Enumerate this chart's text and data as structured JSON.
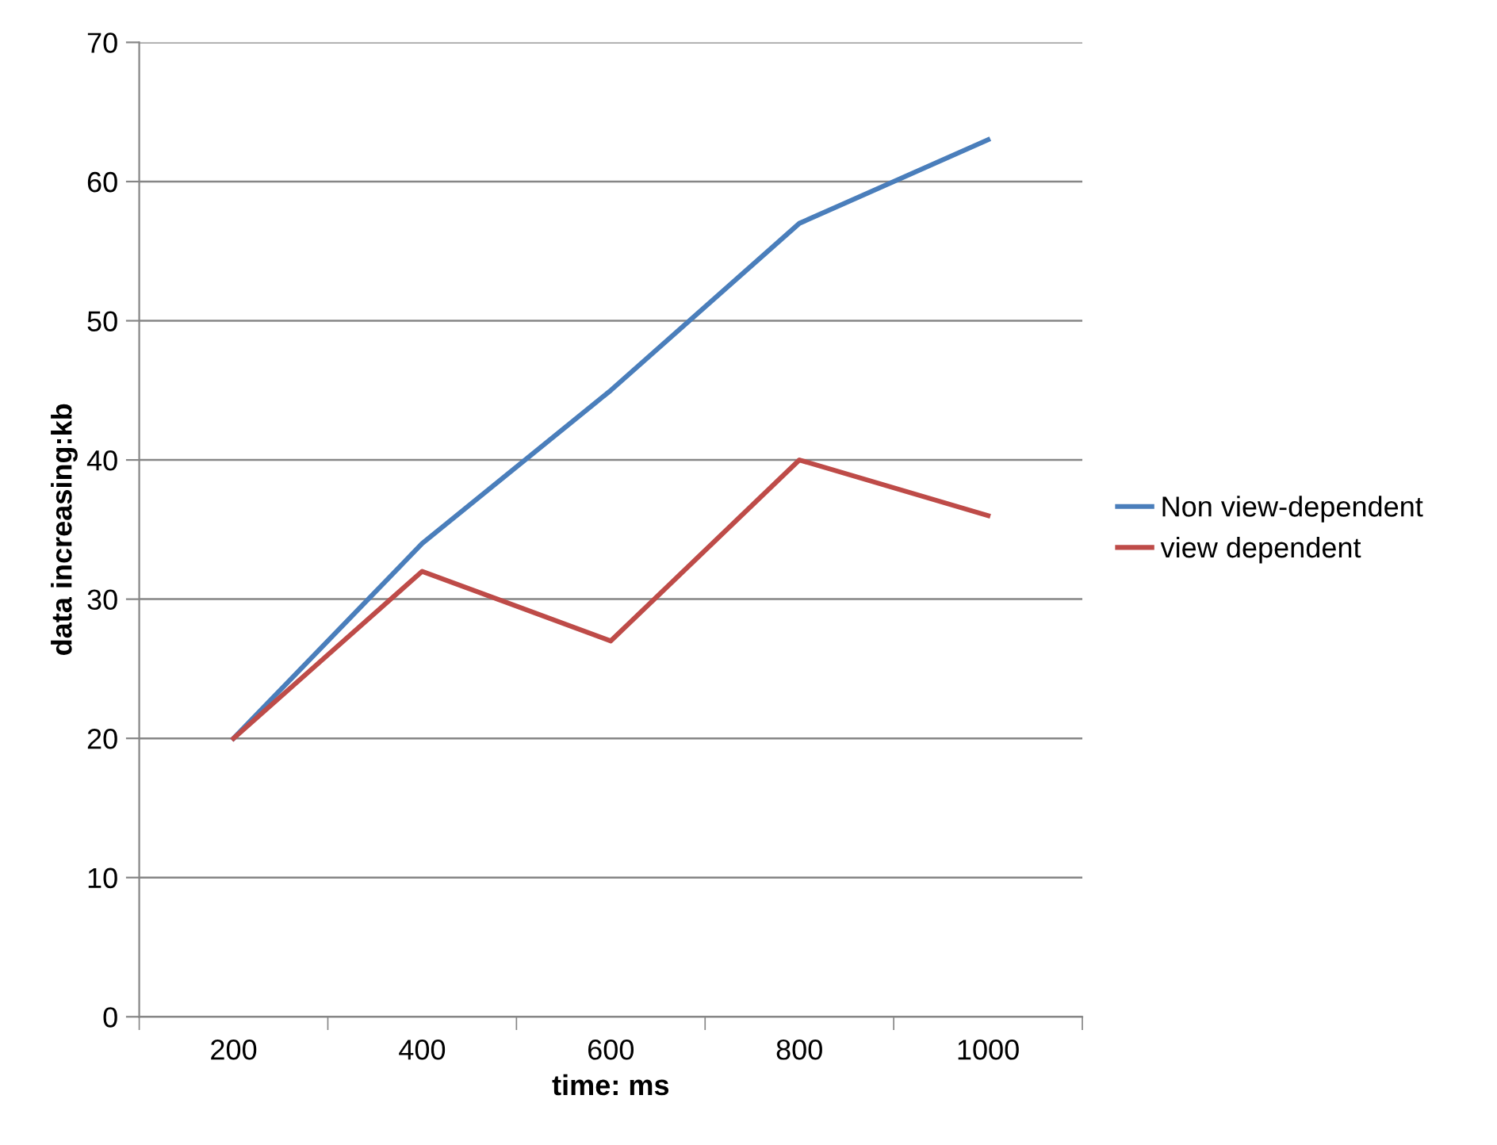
{
  "chart_data": {
    "type": "line",
    "xlabel": "time: ms",
    "ylabel": "data increasing:kb",
    "categories": [
      "200",
      "400",
      "600",
      "800",
      "1000"
    ],
    "series": [
      {
        "name": "Non view-dependent",
        "color": "#4a7ebb",
        "values": [
          20,
          34,
          45,
          57,
          63
        ]
      },
      {
        "name": "view dependent",
        "color": "#be4b48",
        "values": [
          20,
          32,
          27,
          40,
          36
        ]
      }
    ],
    "ylim": [
      0,
      70
    ],
    "yticks": [
      0,
      10,
      20,
      30,
      40,
      50,
      60,
      70
    ],
    "grid": "y",
    "legend": "right",
    "marker": "none",
    "line_style": "solid"
  }
}
